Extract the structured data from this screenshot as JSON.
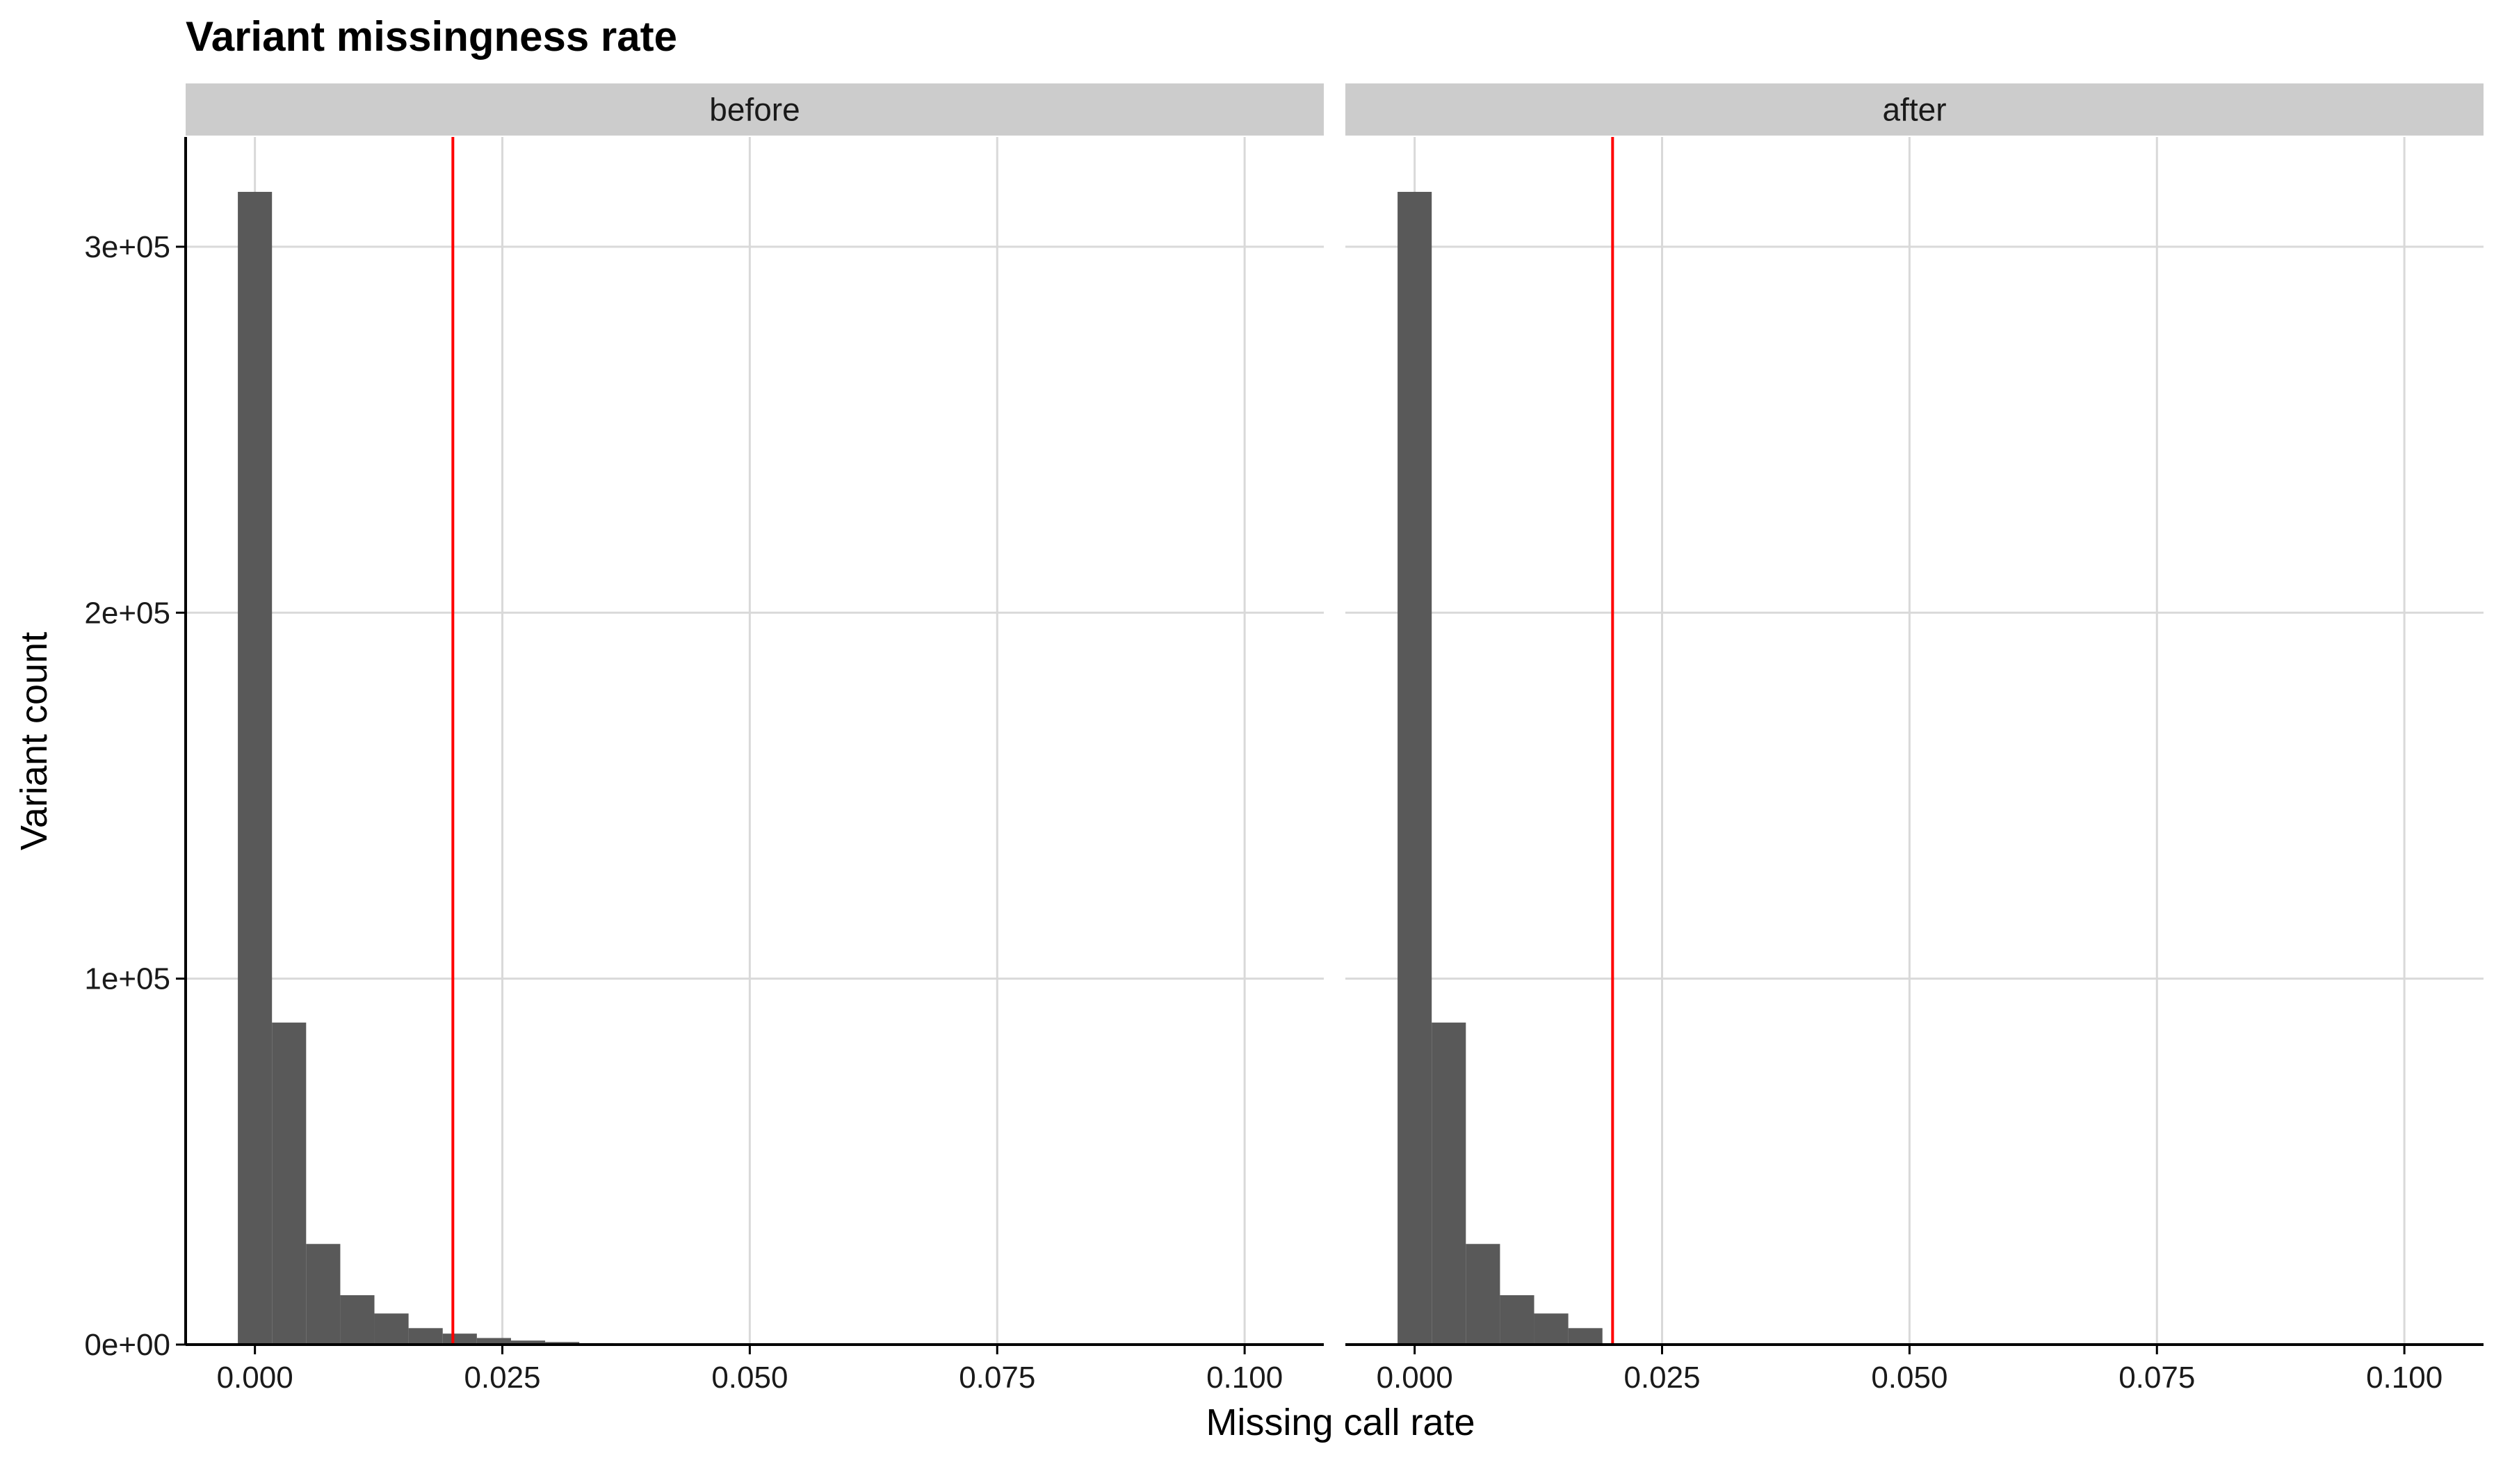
{
  "colors": {
    "bar_fill": "#595959",
    "threshold_line": "#ff0000",
    "grid": "#d9d9d9",
    "strip_background": "#cccccc",
    "axis_line": "#000000"
  },
  "chart_data": {
    "type": "bar",
    "title": "Variant missingness rate",
    "xlabel": "Missing call rate",
    "ylabel": "Variant count",
    "xlim": [
      -0.007,
      0.108
    ],
    "ylim": [
      0,
      330000
    ],
    "x_ticks": [
      0,
      0.025,
      0.05,
      0.075,
      0.1
    ],
    "x_tick_labels": [
      "0.000",
      "0.025",
      "0.050",
      "0.075",
      "0.100"
    ],
    "y_ticks": [
      0,
      100000,
      200000,
      300000
    ],
    "y_tick_labels": [
      "0e+00",
      "1e+05",
      "2e+05",
      "3e+05"
    ],
    "bin_width": 0.00345,
    "threshold": 0.02,
    "grid": true,
    "facets": [
      {
        "label": "before",
        "bins": [
          {
            "x": 0.0,
            "count": 315000
          },
          {
            "x": 0.00345,
            "count": 88000
          },
          {
            "x": 0.0069,
            "count": 27500
          },
          {
            "x": 0.01035,
            "count": 13500
          },
          {
            "x": 0.0138,
            "count": 8500
          },
          {
            "x": 0.01725,
            "count": 4500
          },
          {
            "x": 0.0207,
            "count": 3000
          },
          {
            "x": 0.02415,
            "count": 1800
          },
          {
            "x": 0.0276,
            "count": 1100
          },
          {
            "x": 0.03105,
            "count": 700
          },
          {
            "x": 0.0345,
            "count": 400
          },
          {
            "x": 0.03795,
            "count": 200
          },
          {
            "x": 0.0414,
            "count": 100
          },
          {
            "x": 0.04485,
            "count": 50
          }
        ]
      },
      {
        "label": "after",
        "bins": [
          {
            "x": 0.0,
            "count": 315000
          },
          {
            "x": 0.00345,
            "count": 88000
          },
          {
            "x": 0.0069,
            "count": 27500
          },
          {
            "x": 0.01035,
            "count": 13500
          },
          {
            "x": 0.0138,
            "count": 8500
          },
          {
            "x": 0.01725,
            "count": 4500
          }
        ]
      }
    ]
  }
}
